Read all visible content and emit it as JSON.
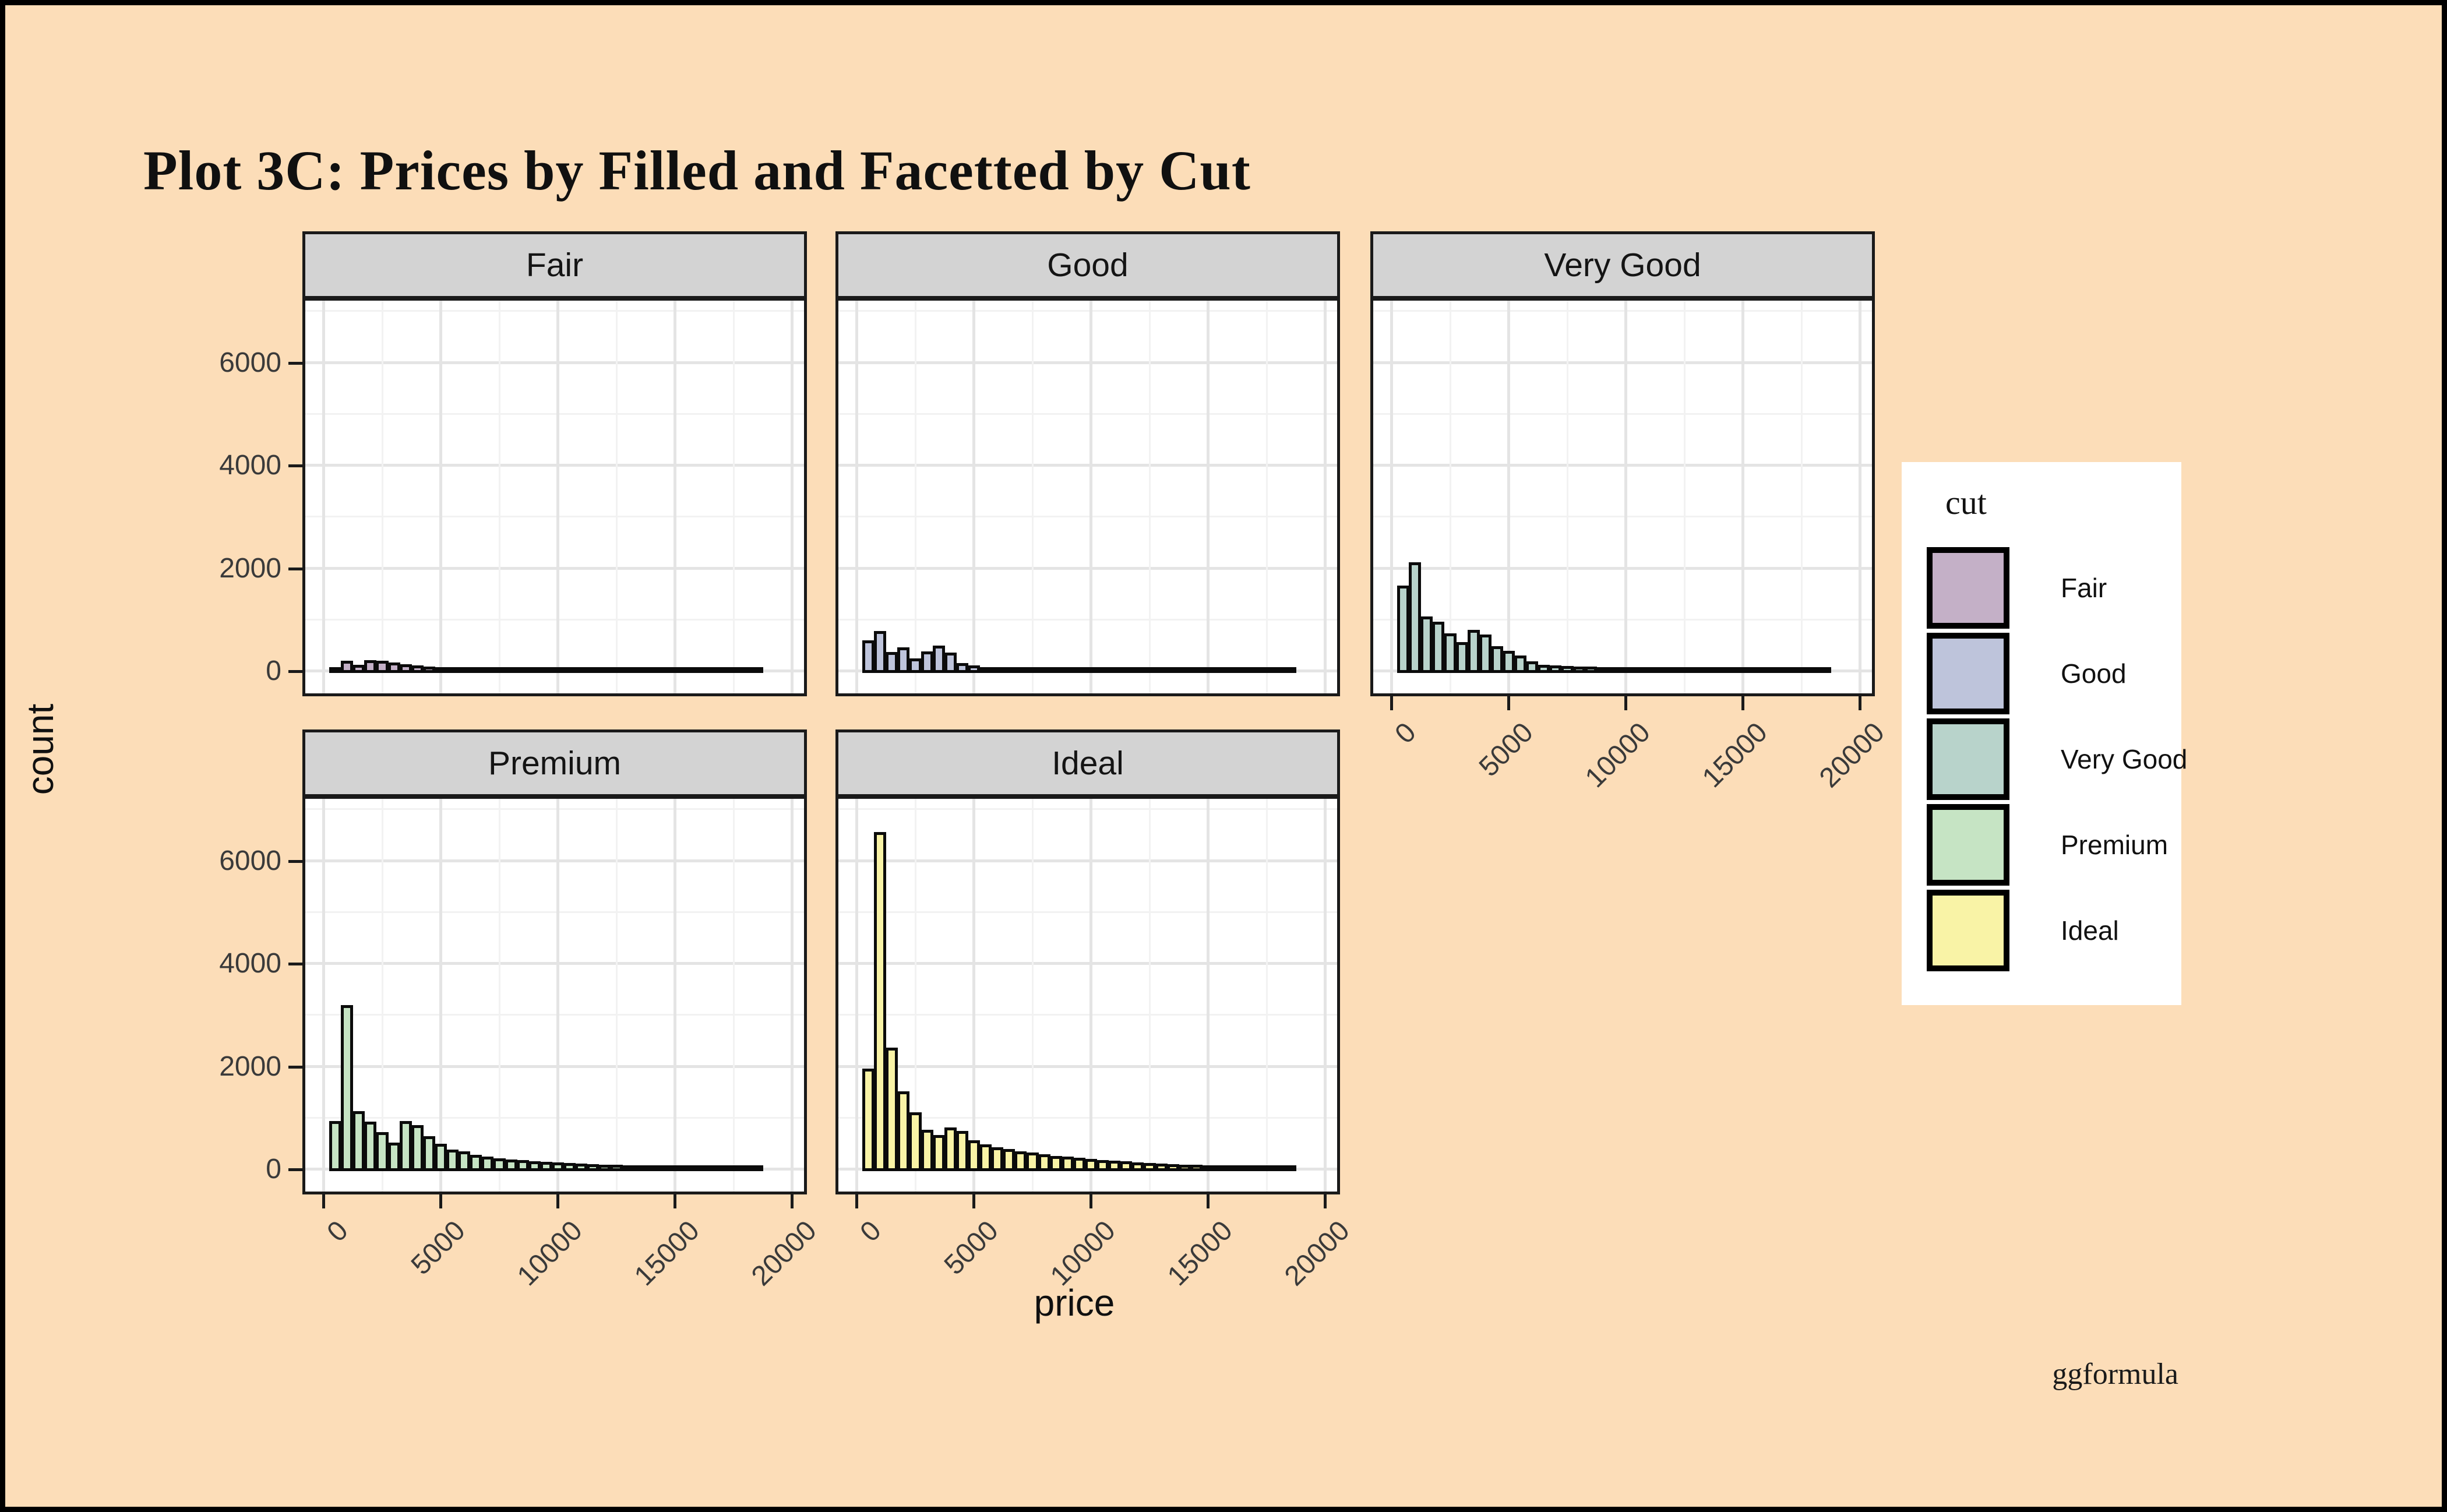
{
  "title": "Plot 3C: Prices by Filled and Facetted by Cut",
  "watermark": "ggformula",
  "axes": {
    "x_title": "price",
    "y_title": "count"
  },
  "legend": {
    "title": "cut",
    "entries": [
      {
        "label": "Fair",
        "color": "#C4B0C7"
      },
      {
        "label": "Good",
        "color": "#BEC4DB"
      },
      {
        "label": "Very Good",
        "color": "#B8D3CB"
      },
      {
        "label": "Premium",
        "color": "#C6E4C4"
      },
      {
        "label": "Ideal",
        "color": "#F9F3A6"
      }
    ]
  },
  "colors": {
    "background": "#FCDDB8",
    "frame": "#000000",
    "panel_bg": "#FFFFFF",
    "strip_bg": "#D3D3D3",
    "grid_major": "#E4E4E4",
    "grid_minor": "#F2F2F2",
    "bar_outline": "#0B0B0B"
  },
  "chart_data": {
    "type": "bar",
    "subtype": "faceted-histogram",
    "title": "Plot 3C: Prices by Filled and Facetted by Cut",
    "xlabel": "price",
    "ylabel": "count",
    "x_range": [
      0,
      20000
    ],
    "y_range": [
      0,
      7000
    ],
    "x_ticks": [
      0,
      5000,
      10000,
      15000,
      20000
    ],
    "y_ticks": [
      0,
      2000,
      4000,
      6000
    ],
    "grid": "on",
    "legend_position": "right",
    "bin_start": 250,
    "bin_width": 500,
    "facets": [
      {
        "name": "Fair",
        "fill": "#C4B0C7",
        "row": 0,
        "col": 0,
        "counts": [
          70,
          240,
          155,
          255,
          235,
          205,
          175,
          150,
          130,
          110,
          90,
          75,
          60,
          50,
          42,
          36,
          32,
          28,
          25,
          22,
          20,
          18,
          16,
          14,
          13,
          12,
          11,
          10,
          9,
          8,
          8,
          7,
          6,
          6,
          5,
          5,
          4
        ]
      },
      {
        "name": "Good",
        "fill": "#BEC4DB",
        "row": 0,
        "col": 1,
        "counts": [
          640,
          820,
          410,
          500,
          285,
          420,
          530,
          395,
          190,
          150,
          110,
          90,
          80,
          72,
          65,
          58,
          52,
          47,
          42,
          38,
          34,
          31,
          28,
          25,
          23,
          21,
          19,
          17,
          15,
          13,
          12,
          11,
          10,
          9,
          8,
          7,
          6
        ]
      },
      {
        "name": "Very Good",
        "fill": "#B8D3CB",
        "row": 0,
        "col": 2,
        "counts": [
          1700,
          2150,
          1100,
          1000,
          770,
          600,
          840,
          750,
          520,
          430,
          340,
          230,
          160,
          150,
          140,
          130,
          120,
          110,
          100,
          95,
          90,
          85,
          80,
          75,
          70,
          65,
          60,
          55,
          50,
          45,
          42,
          38,
          35,
          32,
          30,
          28,
          25
        ]
      },
      {
        "name": "Premium",
        "fill": "#C6E4C4",
        "row": 1,
        "col": 0,
        "counts": [
          980,
          3230,
          1170,
          960,
          760,
          550,
          980,
          890,
          680,
          530,
          420,
          380,
          320,
          280,
          250,
          230,
          210,
          195,
          180,
          170,
          160,
          150,
          140,
          130,
          120,
          115,
          110,
          100,
          95,
          90,
          85,
          80,
          75,
          70,
          65,
          60,
          55
        ]
      },
      {
        "name": "Ideal",
        "fill": "#F9F3A6",
        "row": 1,
        "col": 1,
        "counts": [
          2000,
          6600,
          2400,
          1550,
          1150,
          800,
          700,
          850,
          780,
          600,
          520,
          470,
          430,
          390,
          360,
          330,
          300,
          280,
          260,
          240,
          220,
          205,
          190,
          175,
          160,
          150,
          140,
          130,
          120,
          110,
          100,
          95,
          90,
          85,
          80,
          75,
          70
        ]
      }
    ]
  }
}
